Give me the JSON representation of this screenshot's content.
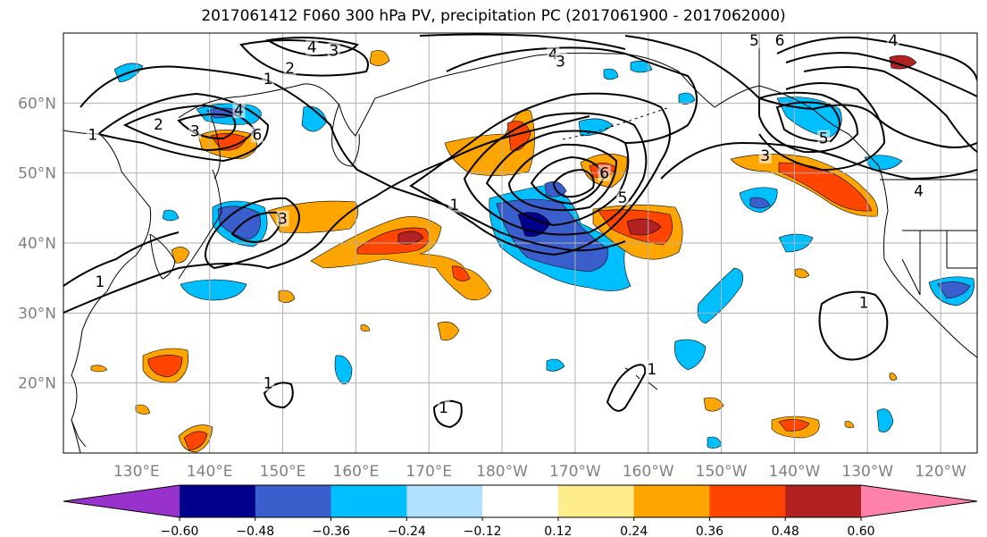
{
  "title": "2017061412 F060 300 hPa PV, precipitation PC (2017061900 - 2017062000)",
  "map": {
    "projection": "cylindrical",
    "lon_range": [
      120,
      245
    ],
    "lat_range": [
      10,
      70
    ],
    "lon_ticks": [
      {
        "value": 130,
        "label": "130°E"
      },
      {
        "value": 140,
        "label": "140°E"
      },
      {
        "value": 150,
        "label": "150°E"
      },
      {
        "value": 160,
        "label": "160°E"
      },
      {
        "value": 170,
        "label": "170°E"
      },
      {
        "value": 180,
        "label": "180°W"
      },
      {
        "value": 190,
        "label": "170°W"
      },
      {
        "value": 200,
        "label": "160°W"
      },
      {
        "value": 210,
        "label": "150°W"
      },
      {
        "value": 220,
        "label": "140°W"
      },
      {
        "value": 230,
        "label": "130°W"
      },
      {
        "value": 240,
        "label": "120°W"
      }
    ],
    "lat_ticks": [
      {
        "value": 20,
        "label": "20°N"
      },
      {
        "value": 30,
        "label": "30°N"
      },
      {
        "value": 40,
        "label": "40°N"
      },
      {
        "value": 50,
        "label": "50°N"
      },
      {
        "value": 60,
        "label": "60°N"
      }
    ],
    "grid": true
  },
  "contours": {
    "field": "300 hPa PV",
    "color": "#000000",
    "labels": [
      {
        "text": "1",
        "lon": 124,
        "lat": 55.5
      },
      {
        "text": "2",
        "lon": 133,
        "lat": 57
      },
      {
        "text": "4",
        "lon": 144,
        "lat": 59
      },
      {
        "text": "6",
        "lon": 146.5,
        "lat": 55.5
      },
      {
        "text": "3",
        "lon": 138,
        "lat": 56
      },
      {
        "text": "1",
        "lon": 148,
        "lat": 63.5
      },
      {
        "text": "2",
        "lon": 151,
        "lat": 65
      },
      {
        "text": "4",
        "lon": 154,
        "lat": 68
      },
      {
        "text": "3",
        "lon": 157,
        "lat": 67.5
      },
      {
        "text": "3",
        "lon": 150,
        "lat": 43.5
      },
      {
        "text": "1",
        "lon": 125,
        "lat": 34.5
      },
      {
        "text": "1",
        "lon": 173.5,
        "lat": 45.5
      },
      {
        "text": "6",
        "lon": 194,
        "lat": 50
      },
      {
        "text": "5",
        "lon": 196.5,
        "lat": 46.5
      },
      {
        "text": "4",
        "lon": 187,
        "lat": 67
      },
      {
        "text": "3",
        "lon": 188,
        "lat": 66
      },
      {
        "text": "5",
        "lon": 214.5,
        "lat": 69
      },
      {
        "text": "6",
        "lon": 218,
        "lat": 69
      },
      {
        "text": "3",
        "lon": 216,
        "lat": 52.5
      },
      {
        "text": "5",
        "lon": 224,
        "lat": 55
      },
      {
        "text": "4",
        "lon": 237,
        "lat": 47.5
      },
      {
        "text": "4",
        "lon": 233.5,
        "lat": 69
      },
      {
        "text": "1",
        "lon": 229.5,
        "lat": 31.5
      },
      {
        "text": "1",
        "lon": 148,
        "lat": 20
      },
      {
        "text": "1",
        "lon": 172,
        "lat": 16.5
      },
      {
        "text": "1",
        "lon": 200.5,
        "lat": 22
      }
    ]
  },
  "shading": {
    "field": "precipitation PC",
    "colors": [
      "#9932CC",
      "#00008B",
      "#3A5FCD",
      "#00BFFF",
      "#B0E2FF",
      "#FFFFFF",
      "#FFEC8B",
      "#FFA500",
      "#FF4500",
      "#B22222",
      "#FF82AB"
    ]
  },
  "colorbar": {
    "boundaries": [
      -0.6,
      -0.48,
      -0.36,
      -0.24,
      -0.12,
      0.12,
      0.24,
      0.36,
      0.48,
      0.6
    ],
    "colors": [
      "#9932CC",
      "#00008B",
      "#3A5FCD",
      "#00BFFF",
      "#B0E2FF",
      "#FFFFFF",
      "#FFEC8B",
      "#FFA500",
      "#FF4500",
      "#B22222",
      "#FF82AB"
    ],
    "tick_labels": [
      "−0.60",
      "−0.48",
      "−0.36",
      "−0.24",
      "−0.12",
      "0.12",
      "0.24",
      "0.36",
      "0.48",
      "0.60"
    ]
  }
}
